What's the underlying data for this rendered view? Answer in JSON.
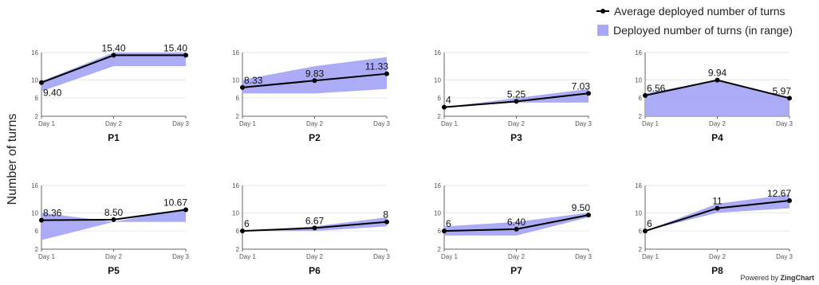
{
  "legend": {
    "line_label": "Average deployed number of turns",
    "area_label": "Deployed number of turns (in range)"
  },
  "y_axis_title": "Number of turns",
  "powered_by": {
    "prefix": "Powered by",
    "brand": "ZingChart"
  },
  "colors": {
    "range_fill": "#a7a7f6",
    "line": "#000000",
    "grid": "#e6e6e6",
    "axis": "#666666"
  },
  "chart_data": [
    {
      "type": "line",
      "title": "P1",
      "categories": [
        "Day 1",
        "Day 2",
        "Day 3"
      ],
      "ylim": [
        2,
        16
      ],
      "yticks": [
        2,
        6,
        10,
        16
      ],
      "series": [
        {
          "name": "Average deployed number of turns",
          "values": [
            9.4,
            15.4,
            15.4
          ],
          "labels": [
            "9.40",
            "15.40",
            "15.40"
          ]
        },
        {
          "name": "Deployed number of turns (in range)",
          "type": "area_range",
          "low": [
            7.5,
            13,
            13
          ],
          "high": [
            9.7,
            16,
            16
          ]
        }
      ]
    },
    {
      "type": "line",
      "title": "P2",
      "categories": [
        "Day 1",
        "Day 2",
        "Day 3"
      ],
      "ylim": [
        2,
        16
      ],
      "yticks": [
        2,
        6,
        10,
        16
      ],
      "series": [
        {
          "name": "Average deployed number of turns",
          "values": [
            8.33,
            9.83,
            11.33
          ],
          "labels": [
            "8.33",
            "9.83",
            "11.33"
          ]
        },
        {
          "name": "Deployed number of turns (in range)",
          "type": "area_range",
          "low": [
            7,
            7,
            8
          ],
          "high": [
            10,
            13,
            15
          ]
        }
      ]
    },
    {
      "type": "line",
      "title": "P3",
      "categories": [
        "Day 1",
        "Day 2",
        "Day 3"
      ],
      "ylim": [
        2,
        16
      ],
      "yticks": [
        2,
        6,
        10,
        16
      ],
      "series": [
        {
          "name": "Average deployed number of turns",
          "values": [
            4,
            5.25,
            7.03
          ],
          "labels": [
            "4",
            "5.25",
            "7.03"
          ]
        },
        {
          "name": "Deployed number of turns (in range)",
          "type": "area_range",
          "low": [
            4,
            5,
            5
          ],
          "high": [
            4,
            6,
            8
          ]
        }
      ]
    },
    {
      "type": "line",
      "title": "P4",
      "categories": [
        "Day 1",
        "Day 2",
        "Day 3"
      ],
      "ylim": [
        2,
        16
      ],
      "yticks": [
        2,
        6,
        10,
        16
      ],
      "series": [
        {
          "name": "Average deployed number of turns",
          "values": [
            6.56,
            9.94,
            5.97
          ],
          "labels": [
            "6.56",
            "9.94",
            "5.97"
          ]
        },
        {
          "name": "Deployed number of turns (in range)",
          "type": "area_range",
          "low": [
            2,
            2,
            2
          ],
          "high": [
            7,
            10,
            6
          ]
        }
      ]
    },
    {
      "type": "line",
      "title": "P5",
      "categories": [
        "Day 1",
        "Day 2",
        "Day 3"
      ],
      "ylim": [
        2,
        16
      ],
      "yticks": [
        2,
        6,
        10,
        16
      ],
      "series": [
        {
          "name": "Average deployed number of turns",
          "values": [
            8.36,
            8.5,
            10.67
          ],
          "labels": [
            "8.36",
            "8.50",
            "10.67"
          ]
        },
        {
          "name": "Deployed number of turns (in range)",
          "type": "area_range",
          "low": [
            4,
            8,
            8
          ],
          "high": [
            10,
            8,
            11
          ]
        }
      ]
    },
    {
      "type": "line",
      "title": "P6",
      "categories": [
        "Day 1",
        "Day 2",
        "Day 3"
      ],
      "ylim": [
        2,
        16
      ],
      "yticks": [
        2,
        6,
        10,
        16
      ],
      "series": [
        {
          "name": "Average deployed number of turns",
          "values": [
            6,
            6.67,
            8
          ],
          "labels": [
            "6",
            "6.67",
            "8"
          ]
        },
        {
          "name": "Deployed number of turns (in range)",
          "type": "area_range",
          "low": [
            6,
            6,
            7
          ],
          "high": [
            6,
            7,
            9
          ]
        }
      ]
    },
    {
      "type": "line",
      "title": "P7",
      "categories": [
        "Day 1",
        "Day 2",
        "Day 3"
      ],
      "ylim": [
        2,
        16
      ],
      "yticks": [
        2,
        6,
        10,
        16
      ],
      "series": [
        {
          "name": "Average deployed number of turns",
          "values": [
            6,
            6.4,
            9.5
          ],
          "labels": [
            "6",
            "6.40",
            "9.50"
          ]
        },
        {
          "name": "Deployed number of turns (in range)",
          "type": "area_range",
          "low": [
            5,
            5,
            9
          ],
          "high": [
            7,
            8,
            10
          ]
        }
      ]
    },
    {
      "type": "line",
      "title": "P8",
      "categories": [
        "Day 1",
        "Day 2",
        "Day 3"
      ],
      "ylim": [
        2,
        16
      ],
      "yticks": [
        2,
        6,
        10,
        16
      ],
      "series": [
        {
          "name": "Average deployed number of turns",
          "values": [
            6,
            11,
            12.67
          ],
          "labels": [
            "6",
            "11",
            "12.67"
          ]
        },
        {
          "name": "Deployed number of turns (in range)",
          "type": "area_range",
          "low": [
            6,
            10,
            11
          ],
          "high": [
            6,
            12,
            14
          ]
        }
      ]
    }
  ]
}
